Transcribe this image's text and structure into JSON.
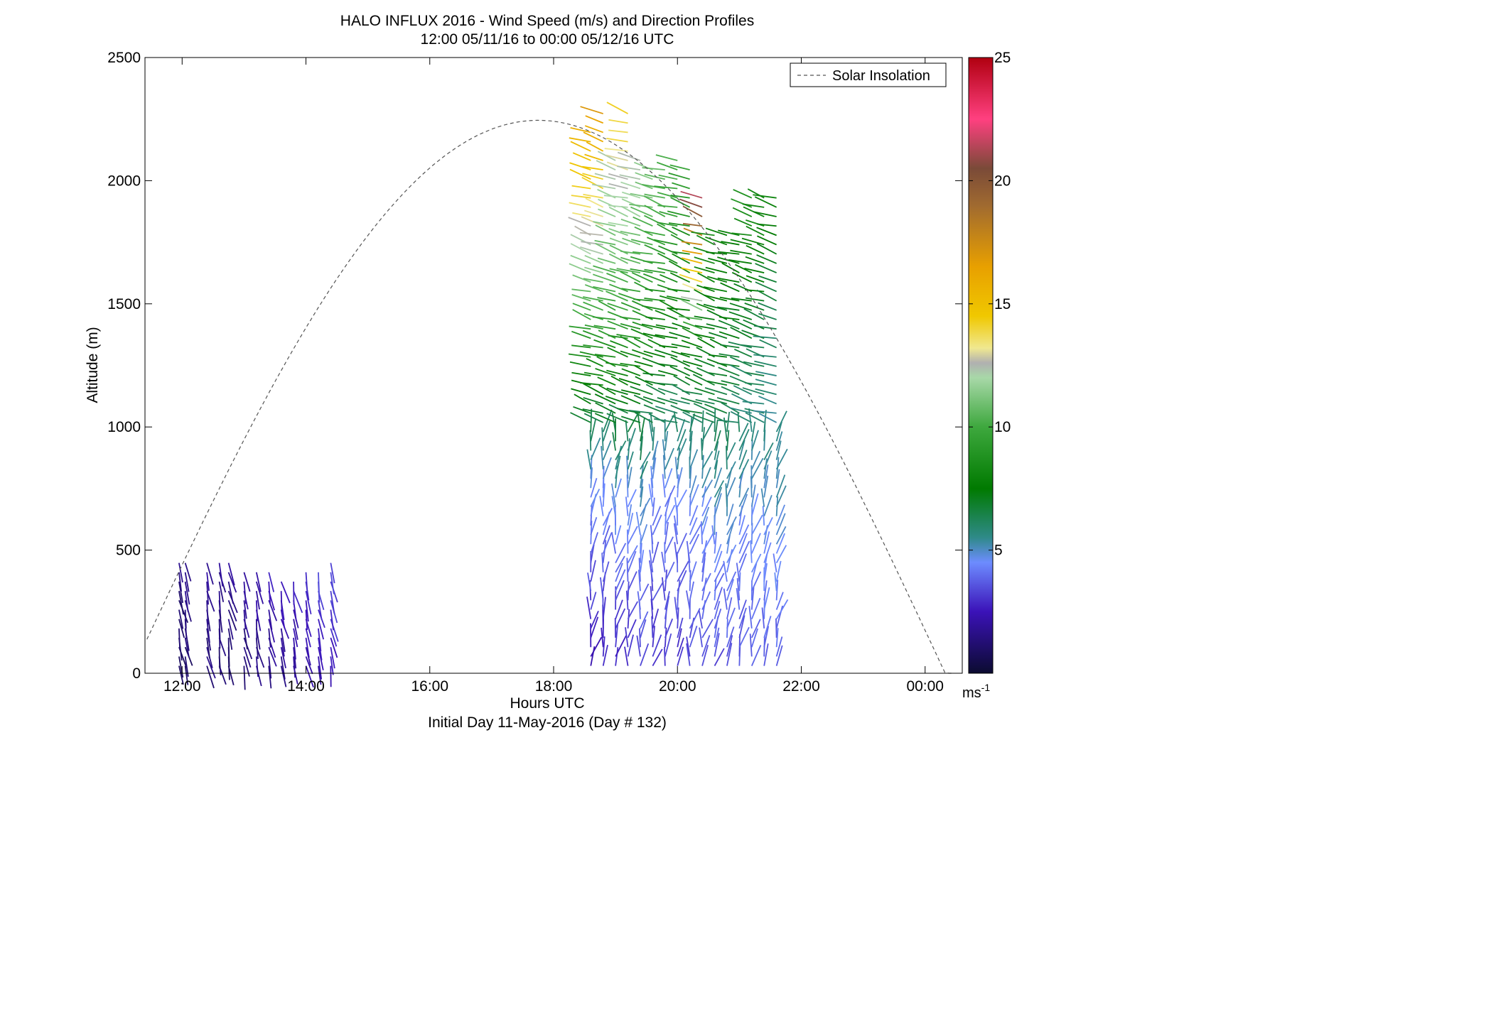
{
  "chart_data": {
    "type": "quiver",
    "title": "HALO INFLUX 2016 - Wind Speed (m/s) and Direction Profiles",
    "subtitle": "12:00 05/11/16 to 00:00 05/12/16  UTC",
    "xlabel": "Hours UTC",
    "footer": "Initial Day 11-May-2016 (Day # 132)",
    "ylabel": "Altitude (m)",
    "xlim": [
      11.4,
      24.6
    ],
    "ylim": [
      0,
      2500
    ],
    "x_ticks": [
      {
        "value": 12,
        "label": "12:00"
      },
      {
        "value": 14,
        "label": "14:00"
      },
      {
        "value": 16,
        "label": "16:00"
      },
      {
        "value": 18,
        "label": "18:00"
      },
      {
        "value": 20,
        "label": "20:00"
      },
      {
        "value": 22,
        "label": "22:00"
      },
      {
        "value": 24,
        "label": "00:00"
      }
    ],
    "y_ticks": [
      0,
      500,
      1000,
      1500,
      2000,
      2500
    ],
    "grid": false,
    "legend": {
      "position": "top-right",
      "entries": [
        {
          "name": "Solar Insolation",
          "style": "dashed",
          "color": "#555555"
        }
      ]
    },
    "colorbar": {
      "min": 0,
      "max": 25,
      "ticks": [
        5,
        10,
        15,
        20,
        25
      ],
      "unit_label": "ms",
      "unit_exponent": "-1",
      "stops": [
        {
          "v": 0,
          "c": "#0b0b30"
        },
        {
          "v": 2.5,
          "c": "#3b12b8"
        },
        {
          "v": 4.5,
          "c": "#6d8cff"
        },
        {
          "v": 5.5,
          "c": "#2f8a8a"
        },
        {
          "v": 7.5,
          "c": "#007a00"
        },
        {
          "v": 10,
          "c": "#3ea83e"
        },
        {
          "v": 12,
          "c": "#a8d8a8"
        },
        {
          "v": 12.6,
          "c": "#b0b0b0"
        },
        {
          "v": 13.2,
          "c": "#f0e890"
        },
        {
          "v": 14.5,
          "c": "#f0c800"
        },
        {
          "v": 16.5,
          "c": "#e8a000"
        },
        {
          "v": 19,
          "c": "#a06a30"
        },
        {
          "v": 20.5,
          "c": "#7a4a38"
        },
        {
          "v": 22.5,
          "c": "#ff4080"
        },
        {
          "v": 25,
          "c": "#b00010"
        }
      ]
    },
    "solar_insolation": {
      "start_hour": 11.3,
      "end_hour": 24.45,
      "peak_hour": 17.75,
      "peak_altitude": 2245
    },
    "profiles": [
      {
        "hour": 11.95,
        "top": 470,
        "speed": [
          1.0,
          1.2,
          1.5
        ]
      },
      {
        "hour": 12.05,
        "top": 480,
        "speed": [
          1.0,
          1.4,
          1.8
        ]
      },
      {
        "hour": 12.4,
        "top": 470,
        "speed": [
          1.3,
          1.6,
          2.0
        ]
      },
      {
        "hour": 12.6,
        "top": 460,
        "speed": [
          1.2,
          1.5,
          1.9
        ]
      },
      {
        "hour": 12.75,
        "top": 450,
        "speed": [
          1.0,
          1.4,
          1.8
        ]
      },
      {
        "hour": 13.0,
        "top": 420,
        "speed": [
          1.2,
          1.6,
          2.2
        ]
      },
      {
        "hour": 13.2,
        "top": 430,
        "speed": [
          1.4,
          1.8,
          2.5
        ]
      },
      {
        "hour": 13.4,
        "top": 420,
        "speed": [
          1.5,
          2.0,
          2.6
        ]
      },
      {
        "hour": 13.6,
        "top": 400,
        "speed": [
          1.6,
          2.1,
          2.8
        ]
      },
      {
        "hour": 13.8,
        "top": 390,
        "speed": [
          1.8,
          2.3,
          3.0
        ]
      },
      {
        "hour": 14.0,
        "top": 420,
        "speed": [
          2.0,
          2.5,
          3.2
        ]
      },
      {
        "hour": 14.2,
        "top": 430,
        "speed": [
          2.2,
          2.8,
          3.4
        ]
      },
      {
        "hour": 14.4,
        "top": 480,
        "speed": [
          2.4,
          3.0,
          3.6
        ]
      },
      {
        "hour": 18.6,
        "top": 2200,
        "speed": [
          2.5,
          4.5,
          10.0,
          16.0
        ]
      },
      {
        "hour": 18.8,
        "top": 2300,
        "speed": [
          2.6,
          4.6,
          10.5,
          17.0
        ]
      },
      {
        "hour": 19.0,
        "top": 2100,
        "speed": [
          2.7,
          4.8,
          9.5,
          12.5
        ]
      },
      {
        "hour": 19.2,
        "top": 2300,
        "speed": [
          2.8,
          5.0,
          10.0,
          14.5
        ]
      },
      {
        "hour": 19.4,
        "top": 2100,
        "speed": [
          3.0,
          5.2,
          9.0,
          12.8
        ]
      },
      {
        "hour": 19.6,
        "top": 2050,
        "speed": [
          3.0,
          4.2,
          8.5,
          11.5
        ]
      },
      {
        "hour": 19.8,
        "top": 2050,
        "speed": [
          3.1,
          4.3,
          8.0,
          11.0
        ]
      },
      {
        "hour": 20.0,
        "top": 2100,
        "speed": [
          3.0,
          4.5,
          8.0,
          10.5
        ]
      },
      {
        "hour": 20.2,
        "top": 2050,
        "speed": [
          3.2,
          4.6,
          7.5,
          9.5
        ]
      },
      {
        "hour": 20.4,
        "top": 1950,
        "speed": [
          3.3,
          4.7,
          7.5,
          22.0
        ]
      },
      {
        "hour": 20.6,
        "top": 1800,
        "speed": [
          3.4,
          4.8,
          7.0,
          8.5
        ]
      },
      {
        "hour": 20.8,
        "top": 1800,
        "speed": [
          3.5,
          4.9,
          7.0,
          8.0
        ]
      },
      {
        "hour": 21.0,
        "top": 1800,
        "speed": [
          3.5,
          4.6,
          6.8,
          8.0
        ]
      },
      {
        "hour": 21.2,
        "top": 1950,
        "speed": [
          3.6,
          4.8,
          6.5,
          9.0
        ]
      },
      {
        "hour": 21.4,
        "top": 1940,
        "speed": [
          3.6,
          4.9,
          6.5,
          8.5
        ]
      },
      {
        "hour": 21.6,
        "top": 1950,
        "speed": [
          3.7,
          5.0,
          6.0,
          8.0
        ]
      }
    ]
  }
}
